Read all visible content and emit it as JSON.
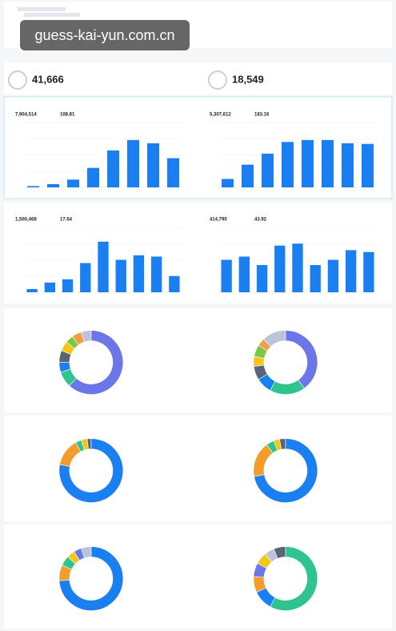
{
  "watermark": "guess-kai-yun.com.cn",
  "kpis": [
    "41,666",
    "18,549"
  ],
  "charts": [
    {
      "type": "bar",
      "color": "#1a7ff0",
      "summary": [
        "7,904,514",
        "108.81"
      ],
      "ylim": [
        0,
        100
      ],
      "values": [
        2,
        5,
        12,
        30,
        57,
        73,
        68,
        45
      ]
    },
    {
      "type": "bar",
      "color": "#1a7ff0",
      "summary": [
        "5,307,612",
        "183.16"
      ],
      "ylim": [
        0,
        100
      ],
      "values": [
        13,
        35,
        52,
        70,
        73,
        73,
        68,
        67
      ]
    },
    {
      "type": "bar",
      "color": "#1a7ff0",
      "summary": [
        "1,500,468",
        "17.64"
      ],
      "ylim": [
        0,
        100
      ],
      "values": [
        5,
        15,
        20,
        45,
        78,
        50,
        57,
        55,
        25
      ]
    },
    {
      "type": "bar",
      "color": "#1a7ff0",
      "summary": [
        "414,790",
        "43.92"
      ],
      "ylim": [
        0,
        100
      ],
      "values": [
        50,
        55,
        42,
        72,
        75,
        42,
        50,
        65,
        62
      ]
    },
    {
      "type": "pie",
      "values": [
        62,
        8,
        5,
        6,
        5,
        4,
        5,
        5
      ],
      "colors": [
        "#6b76e8",
        "#2fc48d",
        "#1a7ff0",
        "#5a6478",
        "#f5c518",
        "#7ac943",
        "#f39c4a",
        "#b9c4d6"
      ]
    },
    {
      "type": "pie",
      "values": [
        40,
        18,
        8,
        7,
        5,
        6,
        4,
        12
      ],
      "colors": [
        "#6b76e8",
        "#2fc48d",
        "#1a7ff0",
        "#5a6478",
        "#f5c518",
        "#7ac943",
        "#f39c4a",
        "#b9c4d6"
      ]
    },
    {
      "type": "pie",
      "values": [
        78,
        14,
        3,
        3,
        2
      ],
      "colors": [
        "#1a7ff0",
        "#f39c2a",
        "#2fc48d",
        "#f5c518",
        "#5a6478"
      ]
    },
    {
      "type": "pie",
      "values": [
        72,
        18,
        4,
        3,
        3
      ],
      "colors": [
        "#1a7ff0",
        "#f39c2a",
        "#2fc48d",
        "#f5c518",
        "#5a6478"
      ]
    },
    {
      "type": "pie",
      "values": [
        74,
        8,
        5,
        4,
        4,
        5
      ],
      "colors": [
        "#1a7ff0",
        "#f39c2a",
        "#2fc48d",
        "#f5c518",
        "#6b76e8",
        "#b9c4d6"
      ]
    },
    {
      "type": "pie",
      "values": [
        58,
        10,
        8,
        7,
        6,
        5,
        6
      ],
      "colors": [
        "#2fc48d",
        "#1a7ff0",
        "#f39c2a",
        "#6b76e8",
        "#f5c518",
        "#b9c4d6",
        "#5a6478"
      ]
    }
  ]
}
